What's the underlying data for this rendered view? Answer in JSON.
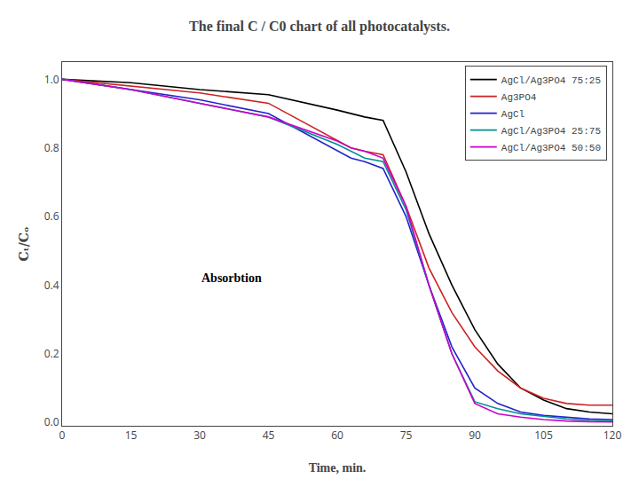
{
  "chart_data": {
    "type": "line",
    "title": "The final C / C0 chart of all photocatalysts.",
    "x_label": "Time, min.",
    "y_label": "Cₜ/Cₒ",
    "x": [
      0,
      15,
      30,
      45,
      60,
      63,
      66,
      70,
      75,
      80,
      85,
      90,
      95,
      100,
      105,
      110,
      115,
      120
    ],
    "series": [
      {
        "name": "AgCl/Ag3PO4 75:25",
        "color": "#000000",
        "values": [
          1.0,
          0.99,
          0.97,
          0.955,
          0.91,
          0.9,
          0.89,
          0.88,
          0.73,
          0.55,
          0.4,
          0.27,
          0.17,
          0.1,
          0.065,
          0.04,
          0.03,
          0.025
        ]
      },
      {
        "name": "Ag3PO4",
        "color": "#cc2222",
        "values": [
          1.0,
          0.98,
          0.96,
          0.93,
          0.82,
          0.8,
          0.79,
          0.78,
          0.63,
          0.45,
          0.32,
          0.22,
          0.15,
          0.1,
          0.07,
          0.055,
          0.05,
          0.05
        ]
      },
      {
        "name": "AgCl",
        "color": "#2222cc",
        "values": [
          1.0,
          0.97,
          0.94,
          0.9,
          0.79,
          0.77,
          0.76,
          0.74,
          0.6,
          0.4,
          0.22,
          0.1,
          0.055,
          0.03,
          0.02,
          0.015,
          0.01,
          0.008
        ]
      },
      {
        "name": "AgCl/Ag3PO4 25:75",
        "color": "#009090",
        "values": [
          1.0,
          0.97,
          0.93,
          0.89,
          0.81,
          0.79,
          0.77,
          0.76,
          0.62,
          0.4,
          0.2,
          0.06,
          0.04,
          0.025,
          0.018,
          0.01,
          0.006,
          0.004
        ]
      },
      {
        "name": "AgCl/Ag3PO4 50:50",
        "color": "#cc00cc",
        "values": [
          1.0,
          0.97,
          0.93,
          0.89,
          0.82,
          0.8,
          0.79,
          0.77,
          0.63,
          0.4,
          0.2,
          0.055,
          0.025,
          0.015,
          0.008,
          0.004,
          0.002,
          0.001
        ]
      }
    ],
    "xlim": [
      0,
      120
    ],
    "ylim": [
      -0.01,
      1.05
    ],
    "xticks": [
      0,
      15,
      30,
      45,
      60,
      75,
      90,
      105,
      120
    ],
    "yticks": [
      {
        "value": 0.0,
        "label": "0.0"
      },
      0.2,
      0.4,
      0.6,
      0.8,
      {
        "value": 1.0,
        "label": "1.0"
      }
    ],
    "annotations": [
      {
        "text": "Absorbtion",
        "x": 30,
        "y": 0.42
      }
    ],
    "legend": "upper right",
    "grid": false
  }
}
